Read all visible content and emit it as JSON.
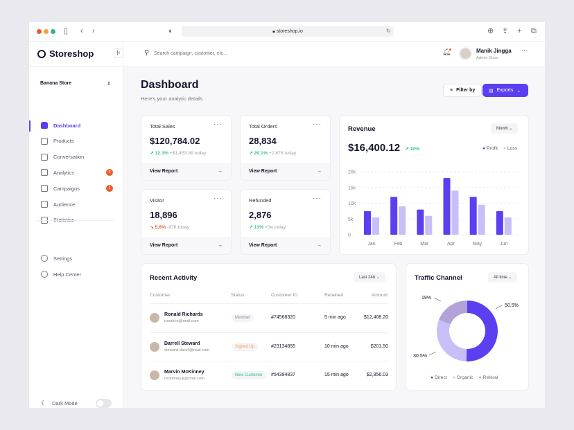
{
  "browser": {
    "url": "storeshop.io"
  },
  "app": {
    "name": "Storeshop",
    "store": "Banana Store"
  },
  "search": {
    "placeholder": "Search campaign, customer, etc..."
  },
  "user": {
    "name": "Manik Jingga",
    "role": "Admin Store"
  },
  "sidebar": {
    "items": [
      {
        "label": "Dashboard",
        "icon": "home-icon",
        "active": true
      },
      {
        "label": "Products",
        "icon": "bag-icon"
      },
      {
        "label": "Conversation",
        "icon": "chat-icon"
      },
      {
        "label": "Analytics",
        "icon": "chart-icon",
        "badge": "3"
      },
      {
        "label": "Campaigns",
        "icon": "layers-icon",
        "badge": "1"
      },
      {
        "label": "Audience",
        "icon": "users-icon"
      },
      {
        "label": "Statistics",
        "icon": "stats-icon"
      }
    ],
    "bottom": [
      {
        "label": "Settings",
        "icon": "gear-icon"
      },
      {
        "label": "Help Center",
        "icon": "help-icon"
      }
    ],
    "dark_mode": "Dark Mode",
    "dark_mode_on": false
  },
  "page": {
    "title": "Dashboard",
    "subtitle": "Here's your analytic details",
    "filter": "Filter by",
    "exports": "Exports"
  },
  "kpis": [
    {
      "title": "Total Sales",
      "value": "$120,784.02",
      "change": "12.3%",
      "dir": "up",
      "delta": "+$1,453.89 today",
      "link": "View Report"
    },
    {
      "title": "Total Orders",
      "value": "28,834",
      "change": "20.1%",
      "dir": "up",
      "delta": "+2,676 today",
      "link": "View Report"
    },
    {
      "title": "Visitor",
      "value": "18,896",
      "change": "5.6%",
      "dir": "down",
      "delta": "-876 today",
      "link": "View Report"
    },
    {
      "title": "Refunded",
      "value": "2,876",
      "change": "13%",
      "dir": "up",
      "delta": "+34 today",
      "link": "View Report"
    }
  ],
  "revenue": {
    "title": "Revenue",
    "period": "Month",
    "total": "$16,400.12",
    "change": "10%"
  },
  "chart_data": {
    "type": "bar",
    "categories": [
      "Jan",
      "Feb",
      "Mar",
      "Apr",
      "May",
      "Jun"
    ],
    "series": [
      {
        "name": "Profit",
        "color": "#5b3ff0",
        "values": [
          7500,
          12000,
          8000,
          18000,
          12000,
          7500
        ]
      },
      {
        "name": "Loss",
        "color": "#c7bff7",
        "values": [
          5500,
          9000,
          6000,
          14000,
          9500,
          5500
        ]
      }
    ],
    "yticks": [
      "0",
      "5k",
      "10k",
      "15k",
      "20k"
    ],
    "ylim": [
      0,
      20000
    ],
    "legend": "top-right",
    "grid": true
  },
  "activity": {
    "title": "Recent Activity",
    "period": "Last 24h",
    "columns": [
      "Customer",
      "Status",
      "Customer ID",
      "Retained",
      "Amount"
    ],
    "rows": [
      {
        "name": "Ronald Richards",
        "email": "ronalrcs@mail.com",
        "status": "Member",
        "status_color": "#8a8c9a",
        "id": "#74568320",
        "retained": "5 min ago",
        "amount": "$12,408.20"
      },
      {
        "name": "Darrell Steward",
        "email": "steward.darell@mail.com",
        "status": "Signed Up",
        "status_color": "#f39a5a",
        "id": "#23134855",
        "retained": "10 min ago",
        "amount": "$201.50"
      },
      {
        "name": "Marvin McKinney",
        "email": "mckinney.jr@mail.com",
        "status": "New Customer",
        "status_color": "#2fc28e",
        "id": "#54394837",
        "retained": "15 min ago",
        "amount": "$2,856.03"
      }
    ]
  },
  "traffic": {
    "title": "Traffic Channel",
    "period": "All time",
    "slices": [
      {
        "name": "Direct",
        "value": 50.5,
        "label": "50.5%",
        "color": "#5b3ff0"
      },
      {
        "name": "Organic",
        "value": 30.5,
        "label": "30.5%",
        "color": "#c7bff7"
      },
      {
        "name": "Referal",
        "value": 19,
        "label": "19%",
        "color": "#b3a2d8"
      }
    ]
  }
}
